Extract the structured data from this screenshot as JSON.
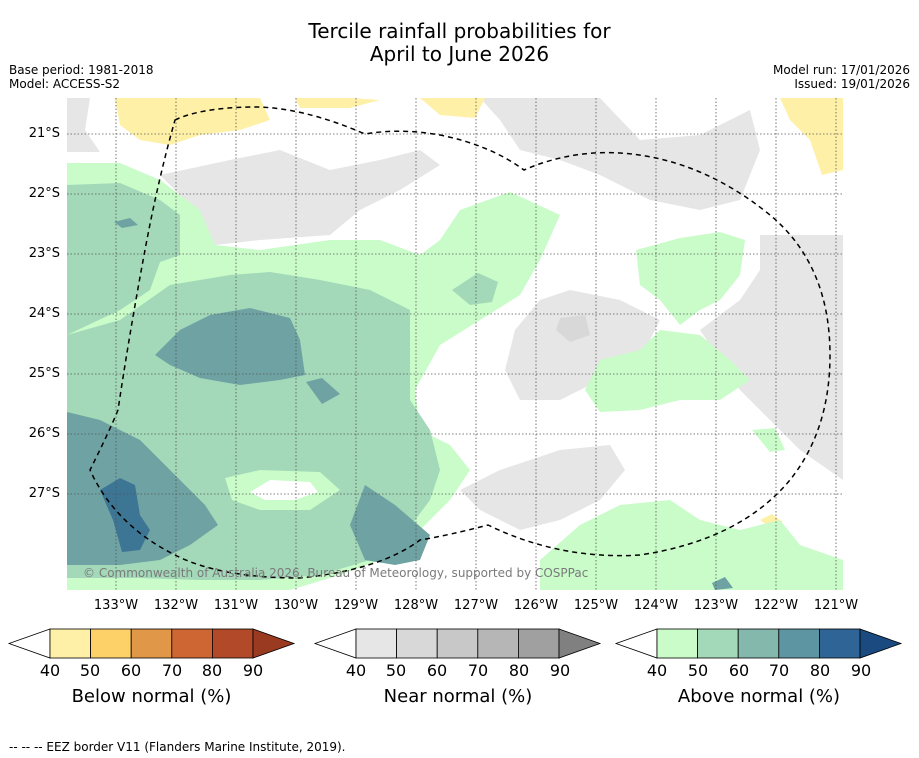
{
  "title_line1": "Tercile rainfall probabilities for",
  "title_line2": "April to June 2026",
  "base_period": "Base period: 1981-2018",
  "model": "Model: ACCESS-S2",
  "model_run": "Model run: 17/01/2026",
  "issued": "Issued: 19/01/2026",
  "copyright": "© Commonwealth of Australia 2026, Bureau of Meteorology, supported by COSPPac",
  "lat_labels": [
    "21°S",
    "22°S",
    "23°S",
    "24°S",
    "25°S",
    "26°S",
    "27°S"
  ],
  "lon_labels": [
    "133°W",
    "132°W",
    "131°W",
    "130°W",
    "129°W",
    "128°W",
    "127°W",
    "126°W",
    "125°W",
    "124°W",
    "123°W",
    "122°W",
    "121°W"
  ],
  "colorbars": [
    {
      "label": "Below normal (%)",
      "ticks": [
        "40",
        "50",
        "60",
        "70",
        "80",
        "90"
      ],
      "colors": [
        "#fff0a8",
        "#fdd068",
        "#e19748",
        "#cd6632",
        "#b24a2a",
        "#9a3a20"
      ]
    },
    {
      "label": "Near normal (%)",
      "ticks": [
        "40",
        "50",
        "60",
        "70",
        "80",
        "90"
      ],
      "colors": [
        "#e6e6e6",
        "#d8d8d8",
        "#c8c8c8",
        "#b6b6b6",
        "#a0a0a0",
        "#808080"
      ]
    },
    {
      "label": "Above normal (%)",
      "ticks": [
        "40",
        "50",
        "60",
        "70",
        "80",
        "90"
      ],
      "colors": [
        "#c9fcc9",
        "#a3d8b8",
        "#84b8ad",
        "#5d95a3",
        "#2f6496",
        "#1a4a80"
      ]
    }
  ],
  "footer": "--  --  -- EEZ border V11 (Flanders Marine Institute, 2019)."
}
